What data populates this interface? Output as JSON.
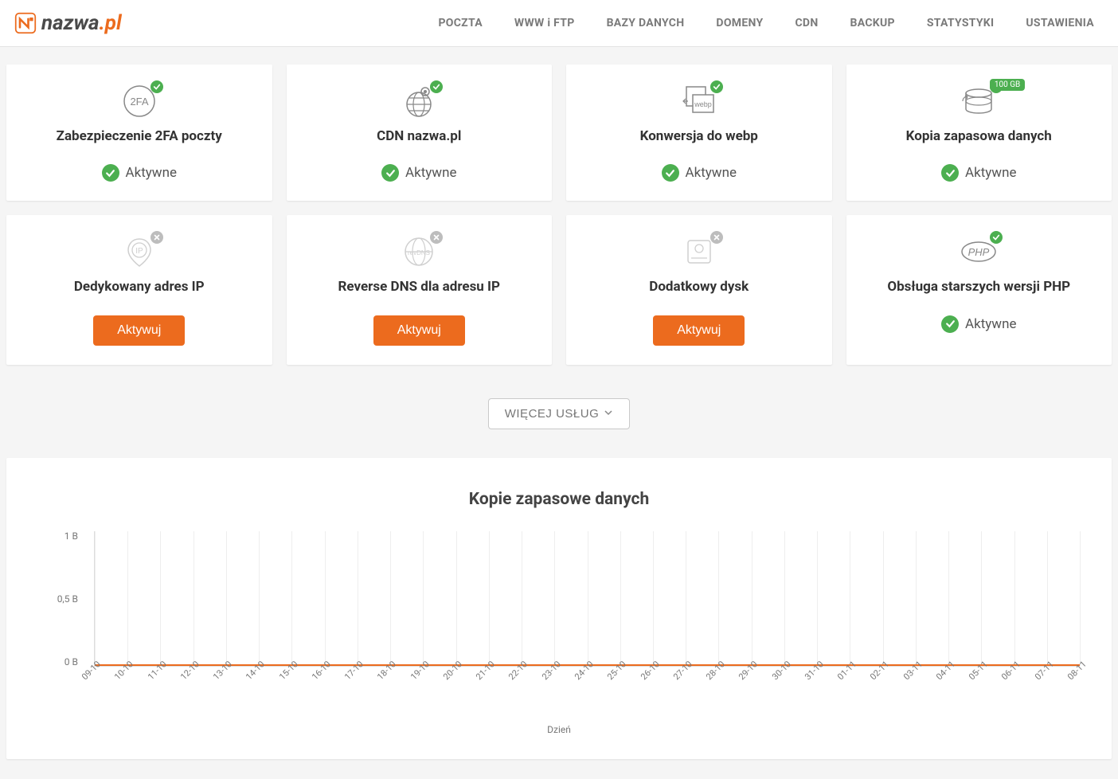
{
  "logo": {
    "text_main": "nazwa",
    "text_suffix": ".pl"
  },
  "nav": {
    "items": [
      "POCZTA",
      "WWW i FTP",
      "BAZY DANYCH",
      "DOMENY",
      "CDN",
      "BACKUP",
      "STATYSTYKI",
      "USTAWIENIA"
    ]
  },
  "status_active_label": "Aktywne",
  "activate_button_label": "Aktywuj",
  "cards": [
    {
      "title": "Zabezpieczenie 2FA poczty",
      "active": true,
      "icon": "2fa"
    },
    {
      "title": "CDN nazwa.pl",
      "active": true,
      "icon": "globe"
    },
    {
      "title": "Konwersja do webp",
      "active": true,
      "icon": "webp"
    },
    {
      "title": "Kopia zapasowa danych",
      "active": true,
      "icon": "backup",
      "gb_badge": "100 GB"
    },
    {
      "title": "Dedykowany adres IP",
      "active": false,
      "icon": "ip"
    },
    {
      "title": "Reverse DNS dla adresu IP",
      "active": false,
      "icon": "revdns"
    },
    {
      "title": "Dodatkowy dysk",
      "active": false,
      "icon": "disk"
    },
    {
      "title": "Obsługa starszych wersji PHP",
      "active": true,
      "icon": "php"
    }
  ],
  "more_button": "WIĘCEJ USŁUG",
  "chart": {
    "title": "Kopie zapasowe danych",
    "type": "line",
    "xlabel": "Dzień",
    "ylim": [
      0,
      1
    ],
    "y_unit": "B",
    "ytick_labels": [
      "1 B",
      "0,5 B",
      "0 B"
    ],
    "x_categories": [
      "09-10",
      "10-10",
      "11-10",
      "12-10",
      "13-10",
      "14-10",
      "15-10",
      "16-10",
      "17-10",
      "18-10",
      "19-10",
      "20-10",
      "21-10",
      "22-10",
      "23-10",
      "24-10",
      "25-10",
      "26-10",
      "27-10",
      "28-10",
      "29-10",
      "30-10",
      "31-10",
      "01-11",
      "02-11",
      "03-11",
      "04-11",
      "05-11",
      "06-11",
      "07-11",
      "08-11"
    ],
    "series": [
      {
        "name": "backup",
        "color": "#ec6b1e",
        "values": [
          0,
          0,
          0,
          0,
          0,
          0,
          0,
          0,
          0,
          0,
          0,
          0,
          0,
          0,
          0,
          0,
          0,
          0,
          0,
          0,
          0,
          0,
          0,
          0,
          0,
          0,
          0,
          0,
          0,
          0,
          0
        ]
      }
    ],
    "grid_color": "#eeeeee",
    "background_color": "#ffffff",
    "line_width": 2
  },
  "colors": {
    "accent": "#ec6b1e",
    "success": "#4caf50",
    "muted": "#bdbdbd",
    "text": "#333333",
    "text_secondary": "#7a7a7a"
  }
}
